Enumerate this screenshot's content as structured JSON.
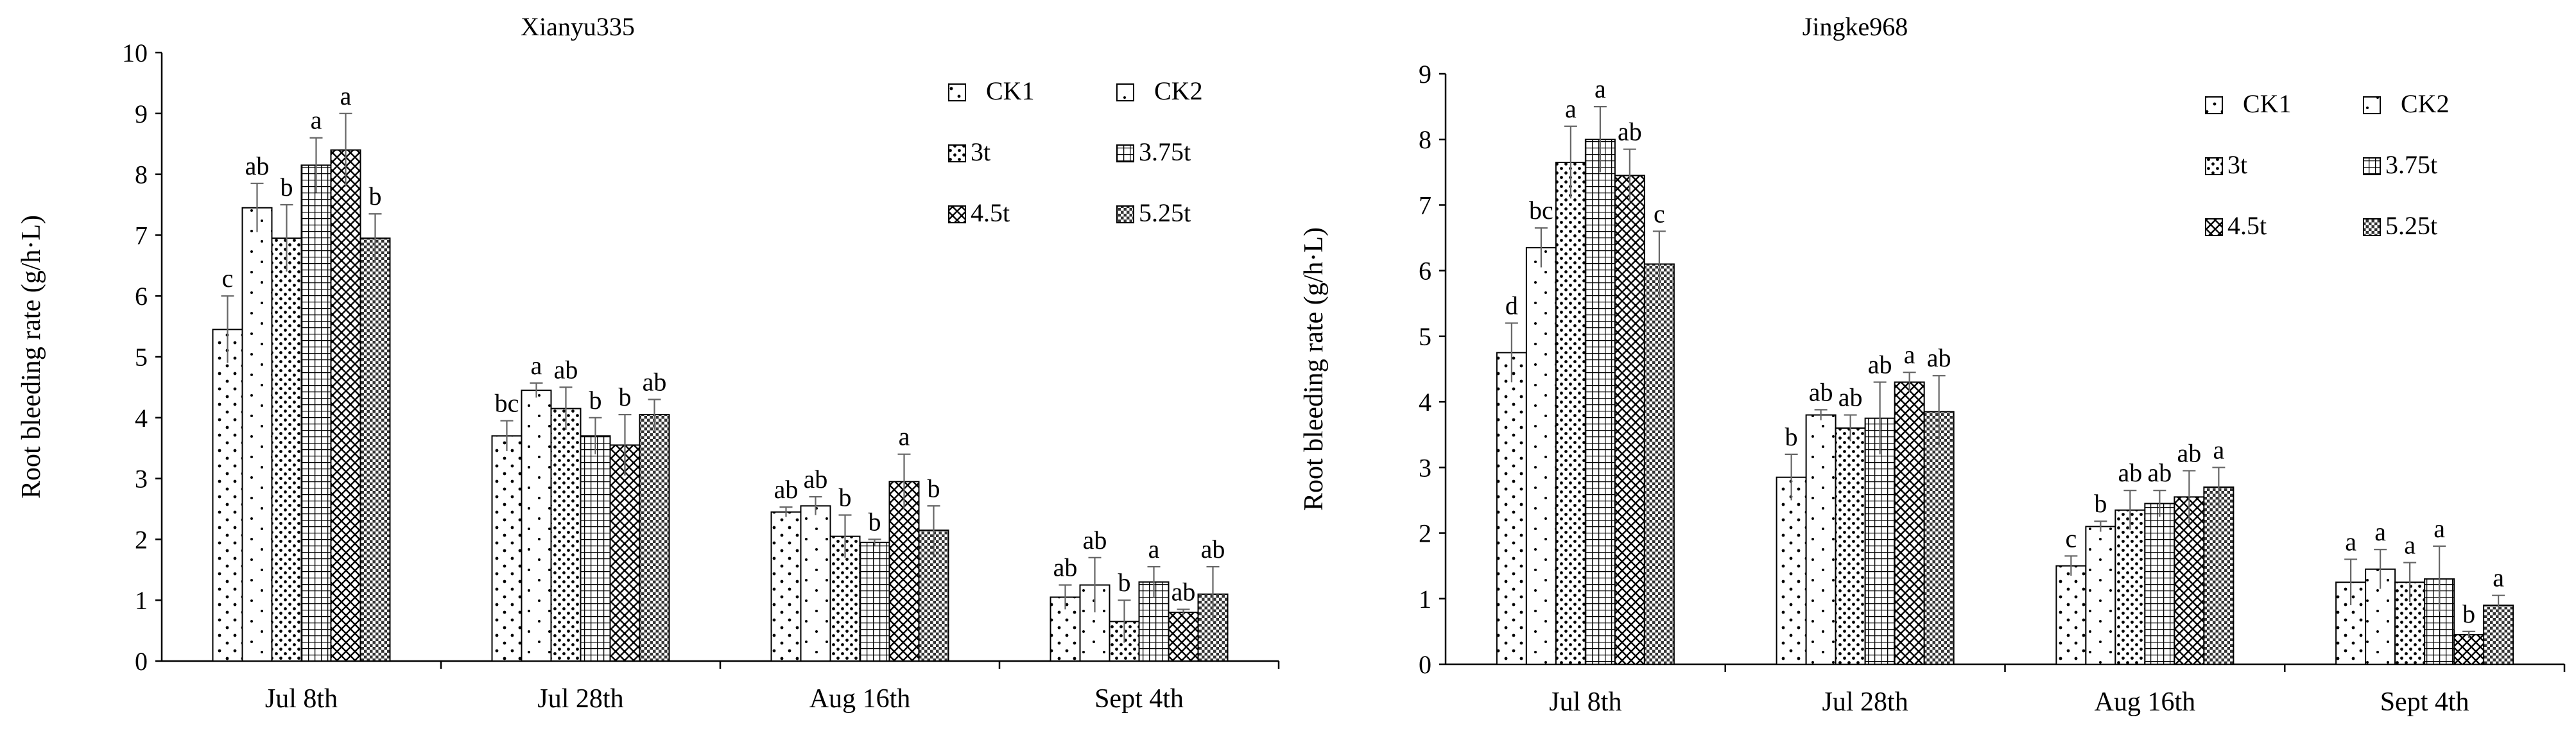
{
  "chart_data": [
    {
      "type": "bar",
      "title": "Xianyu335",
      "xlabel": "",
      "ylabel": "Root bleeding rate (g/h·L)",
      "ylim": [
        0,
        10
      ],
      "yticks": [
        "0",
        "1",
        "2",
        "3",
        "4",
        "5",
        "6",
        "7",
        "8",
        "9",
        "10"
      ],
      "categories": [
        "Jul 8th",
        "Jul 28th",
        "Aug 16th",
        "Sept 4th"
      ],
      "legend_position": "top-right",
      "series": [
        {
          "name": "CK1",
          "values": [
            5.45,
            3.7,
            2.45,
            1.05
          ],
          "errors": [
            0.55,
            0.25,
            0.08,
            0.2
          ],
          "letters": [
            "c",
            "bc",
            "ab",
            "ab"
          ]
        },
        {
          "name": "CK2",
          "values": [
            7.45,
            4.45,
            2.55,
            1.25
          ],
          "errors": [
            0.4,
            0.12,
            0.15,
            0.45
          ],
          "letters": [
            "ab",
            "a",
            "ab",
            "ab"
          ]
        },
        {
          "name": "3t",
          "values": [
            6.95,
            4.15,
            2.05,
            0.65
          ],
          "errors": [
            0.55,
            0.35,
            0.35,
            0.35
          ],
          "letters": [
            "b",
            "ab",
            "b",
            "b"
          ]
        },
        {
          "name": "3.75t",
          "values": [
            8.15,
            3.7,
            1.95,
            1.3
          ],
          "errors": [
            0.45,
            0.3,
            0.05,
            0.25
          ],
          "letters": [
            "a",
            "b",
            "b",
            "a"
          ]
        },
        {
          "name": "4.5t",
          "values": [
            8.4,
            3.55,
            2.95,
            0.8
          ],
          "errors": [
            0.6,
            0.5,
            0.45,
            0.05
          ],
          "letters": [
            "a",
            "b",
            "a",
            "ab"
          ]
        },
        {
          "name": "5.25t",
          "values": [
            6.95,
            4.05,
            2.15,
            1.1
          ],
          "errors": [
            0.4,
            0.25,
            0.4,
            0.45
          ],
          "letters": [
            "b",
            "ab",
            "b",
            "ab"
          ]
        }
      ]
    },
    {
      "type": "bar",
      "title": "Jingke968",
      "xlabel": "",
      "ylabel": "Root bleeding rate (g/h·L)",
      "ylim": [
        0,
        9
      ],
      "yticks": [
        "0",
        "1",
        "2",
        "3",
        "4",
        "5",
        "6",
        "7",
        "8",
        "9"
      ],
      "categories": [
        "Jul 8th",
        "Jul 28th",
        "Aug 16th",
        "Sept 4th"
      ],
      "legend_position": "top-right",
      "series": [
        {
          "name": "CK1",
          "values": [
            4.75,
            2.85,
            1.5,
            1.25
          ],
          "errors": [
            0.45,
            0.35,
            0.15,
            0.35
          ],
          "letters": [
            "d",
            "b",
            "c",
            "a"
          ]
        },
        {
          "name": "CK2",
          "values": [
            6.35,
            3.8,
            2.1,
            1.45
          ],
          "errors": [
            0.3,
            0.08,
            0.08,
            0.3
          ],
          "letters": [
            "bc",
            "ab",
            "b",
            "a"
          ]
        },
        {
          "name": "3t",
          "values": [
            7.65,
            3.6,
            2.35,
            1.25
          ],
          "errors": [
            0.55,
            0.2,
            0.3,
            0.3
          ],
          "letters": [
            "a",
            "ab",
            "ab",
            "a"
          ]
        },
        {
          "name": "3.75t",
          "values": [
            8.0,
            3.75,
            2.45,
            1.3
          ],
          "errors": [
            0.5,
            0.55,
            0.2,
            0.5
          ],
          "letters": [
            "a",
            "ab",
            "ab",
            "a"
          ]
        },
        {
          "name": "4.5t",
          "values": [
            7.45,
            4.3,
            2.55,
            0.45
          ],
          "errors": [
            0.4,
            0.15,
            0.4,
            0.05
          ],
          "letters": [
            "ab",
            "a",
            "ab",
            "b"
          ]
        },
        {
          "name": "5.25t",
          "values": [
            6.1,
            3.85,
            2.7,
            0.9
          ],
          "errors": [
            0.5,
            0.55,
            0.3,
            0.15
          ],
          "letters": [
            "c",
            "ab",
            "a",
            "a"
          ]
        }
      ]
    }
  ]
}
